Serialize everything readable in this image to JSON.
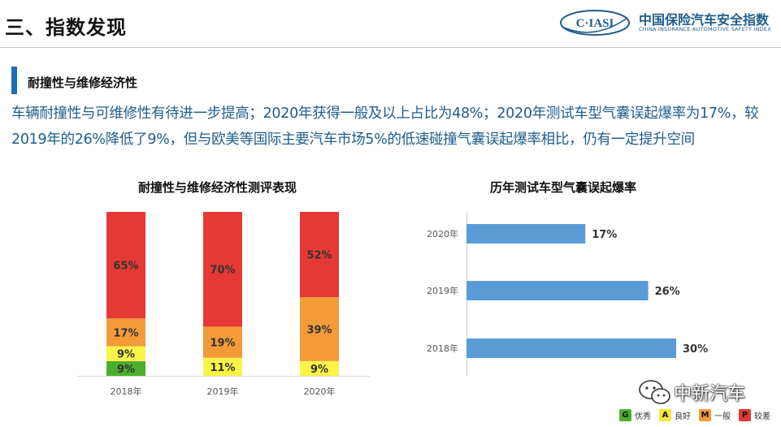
{
  "page": {
    "title": "三、指数发现",
    "section_heading": "耐撞性与维修经济性",
    "intro": "车辆耐撞性与可维修性有待进一步提高；2020年获得一般及以上占比为48%；2020年测试车型气囊误起爆率为17%，较2019年的26%降低了9%，但与欧美等国际主要汽车市场5%的低速碰撞气囊误起爆率相比，仍有一定提升空间"
  },
  "logo": {
    "mark": "C·IASI",
    "name": "中国保险汽车安全指数",
    "subtitle": "CHINA INSURANCE AUTOMOTIVE SAFETY INDEX",
    "color": "#1f5d8c"
  },
  "watermark": {
    "text": "中新汽车",
    "icon": "wechat-icon"
  },
  "legend": [
    {
      "key": "G",
      "label": "优秀",
      "color": "#4caf2b"
    },
    {
      "key": "A",
      "label": "良好",
      "color": "#f5e83a"
    },
    {
      "key": "M",
      "label": "一般",
      "color": "#f29b38"
    },
    {
      "key": "P",
      "label": "较差",
      "color": "#e53935"
    }
  ],
  "chart_data": [
    {
      "type": "bar",
      "stacked": true,
      "title": "耐撞性与维修经济性测评表现",
      "categories": [
        "2018年",
        "2019年",
        "2020年"
      ],
      "ylim": [
        0,
        100
      ],
      "grid": false,
      "series": [
        {
          "name": "优秀",
          "key": "G",
          "color": "#4caf2b",
          "values": [
            9,
            0,
            0
          ],
          "labels": [
            "9%",
            "",
            ""
          ]
        },
        {
          "name": "良好",
          "key": "A",
          "color": "#fbf448",
          "values": [
            9,
            11,
            9
          ],
          "labels": [
            "9%",
            "11%",
            "9%"
          ]
        },
        {
          "name": "一般",
          "key": "M",
          "color": "#f29b38",
          "values": [
            17,
            19,
            39
          ],
          "labels": [
            "17%",
            "19%",
            "39%"
          ]
        },
        {
          "name": "较差",
          "key": "P",
          "color": "#e53935",
          "values": [
            65,
            70,
            52
          ],
          "labels": [
            "65%",
            "70%",
            "52%"
          ]
        }
      ]
    },
    {
      "type": "bar",
      "orientation": "horizontal",
      "title": "历年测试车型气囊误起爆率",
      "categories": [
        "2020年",
        "2019年",
        "2018年"
      ],
      "values": [
        17,
        26,
        30
      ],
      "labels": [
        "17%",
        "26%",
        "30%"
      ],
      "xlim": [
        0,
        35
      ],
      "color": "#5b9bd5",
      "grid": false
    }
  ]
}
